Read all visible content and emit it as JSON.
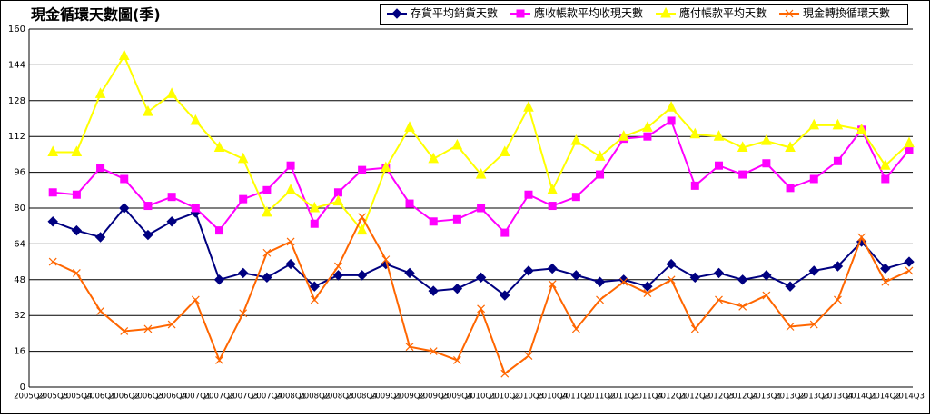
{
  "chart_data": {
    "type": "line",
    "title": "現金循環天數圖(季)",
    "categories": [
      "2005Q2",
      "2005Q3",
      "2005Q4",
      "2006Q1",
      "2006Q2",
      "2006Q3",
      "2006Q4",
      "2007Q1",
      "2007Q2",
      "2007Q3",
      "2007Q4",
      "2008Q1",
      "2008Q2",
      "2008Q3",
      "2008Q4",
      "2009Q1",
      "2009Q2",
      "2009Q3",
      "2009Q4",
      "2010Q1",
      "2010Q2",
      "2010Q3",
      "2010Q4",
      "2011Q1",
      "2011Q2",
      "2011Q3",
      "2011Q4",
      "2012Q1",
      "2012Q2",
      "2012Q3",
      "2012Q4",
      "2013Q1",
      "2013Q2",
      "2013Q3",
      "2013Q4",
      "2014Q1",
      "2014Q2",
      "2014Q3"
    ],
    "series": [
      {
        "name": "存貨平均銷貨天數",
        "color": "#000080",
        "marker": "diamond",
        "values": [
          null,
          74,
          70,
          67,
          80,
          68,
          74,
          78,
          48,
          51,
          49,
          55,
          45,
          50,
          50,
          55,
          51,
          43,
          44,
          49,
          41,
          52,
          53,
          50,
          47,
          48,
          45,
          55,
          49,
          51,
          48,
          50,
          45,
          52,
          54,
          65,
          53,
          56
        ]
      },
      {
        "name": "應收帳款平均收現天數",
        "color": "#ff00ff",
        "marker": "square",
        "values": [
          null,
          87,
          86,
          98,
          93,
          81,
          85,
          80,
          70,
          84,
          88,
          99,
          73,
          87,
          97,
          98,
          82,
          74,
          75,
          80,
          69,
          86,
          81,
          85,
          95,
          111,
          112,
          119,
          90,
          99,
          95,
          100,
          89,
          93,
          101,
          115,
          93,
          106
        ]
      },
      {
        "name": "應付帳款平均天數",
        "color": "#ffff00",
        "marker": "triangle",
        "values": [
          null,
          105,
          105,
          131,
          148,
          123,
          131,
          119,
          107,
          102,
          78,
          88,
          80,
          83,
          70,
          98,
          116,
          102,
          108,
          95,
          105,
          125,
          88,
          110,
          103,
          112,
          116,
          125,
          113,
          112,
          107,
          110,
          107,
          117,
          117,
          115,
          99,
          109
        ]
      },
      {
        "name": "現金轉換循環天數",
        "color": "#ff6600",
        "marker": "x",
        "values": [
          null,
          56,
          51,
          34,
          25,
          26,
          28,
          39,
          12,
          33,
          60,
          65,
          39,
          54,
          76,
          57,
          18,
          16,
          12,
          35,
          6,
          14,
          46,
          26,
          39,
          47,
          42,
          48,
          26,
          39,
          36,
          41,
          27,
          28,
          39,
          67,
          47,
          52
        ]
      }
    ],
    "ylim": [
      0,
      160
    ],
    "yticks": [
      0,
      16,
      32,
      48,
      64,
      80,
      96,
      112,
      128,
      144,
      160
    ],
    "grid": true
  }
}
